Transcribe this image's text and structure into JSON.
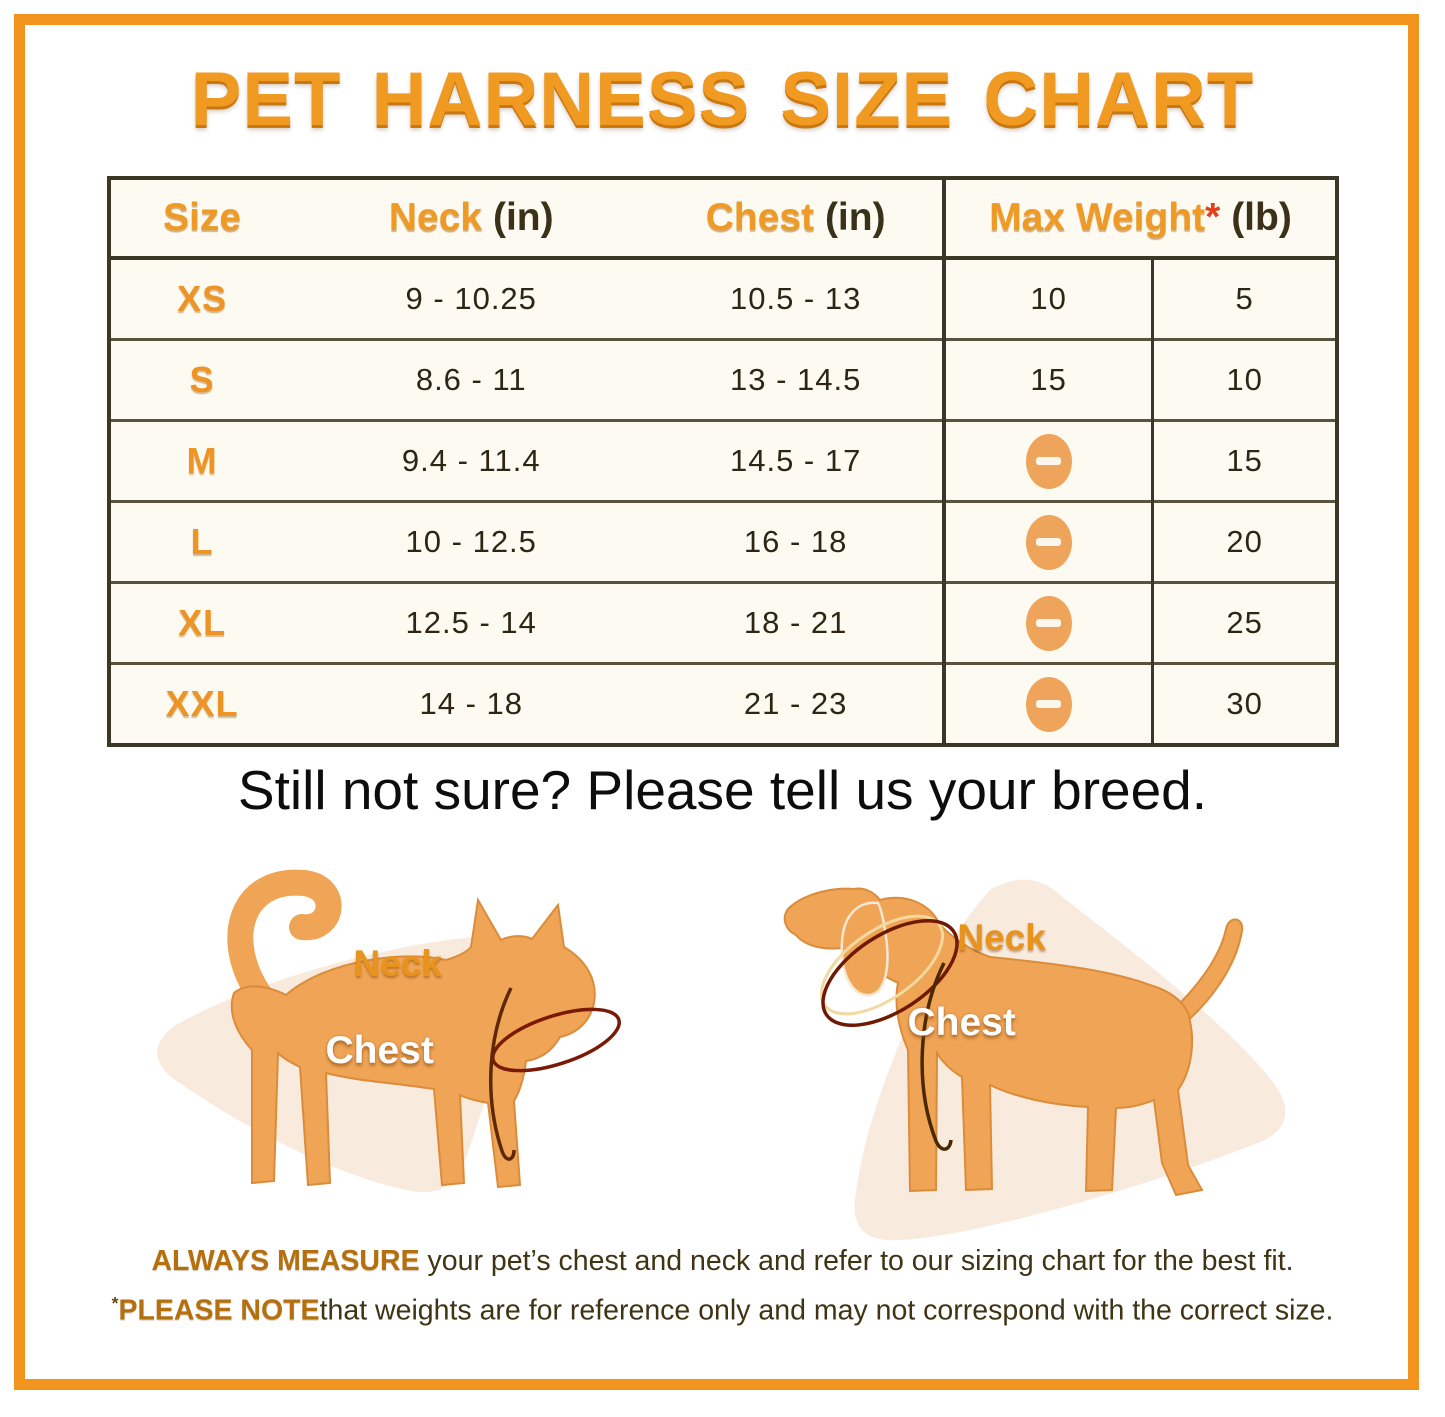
{
  "title": "PET HARNESS SIZE CHART",
  "colors": {
    "frame_orange": "#F2941E",
    "heading_orange": "#F09A22",
    "table_border": "#3C3827",
    "cell_background": "#FDFBF1",
    "dark_text": "#2E2614",
    "minus_icon_fill": "#EFA45C",
    "animal_fill": "#F0A455",
    "blob_fill": "#F8EADD",
    "measure_line": "#7A1A05"
  },
  "table": {
    "headers": {
      "size": "Size",
      "neck": "Neck",
      "neck_unit": "(in)",
      "chest": "Chest",
      "chest_unit": "(in)",
      "max_weight": "Max Weight",
      "footnote_marker": "*",
      "max_weight_unit": "(lb)"
    },
    "not_applicable_icon": "minus-icon",
    "rows": [
      {
        "size": "XS",
        "neck": "9 - 10.25",
        "chest": "10.5 - 13",
        "weight_a": "10",
        "weight_b": "5"
      },
      {
        "size": "S",
        "neck": "8.6 - 11",
        "chest": "13 - 14.5",
        "weight_a": "15",
        "weight_b": "10"
      },
      {
        "size": "M",
        "neck": "9.4 - 11.4",
        "chest": "14.5 - 17",
        "weight_a": null,
        "weight_b": "15"
      },
      {
        "size": "L",
        "neck": "10 - 12.5",
        "chest": "16 - 18",
        "weight_a": null,
        "weight_b": "20"
      },
      {
        "size": "XL",
        "neck": "12.5 - 14",
        "chest": "18 - 21",
        "weight_a": null,
        "weight_b": "25"
      },
      {
        "size": "XXL",
        "neck": "14 - 18",
        "chest": "21 - 23",
        "weight_a": null,
        "weight_b": "30"
      }
    ]
  },
  "subtitle": "Still not sure? Please tell us your breed.",
  "diagrams": {
    "cat": {
      "neck_label": "Neck",
      "chest_label": "Chest"
    },
    "dog": {
      "neck_label": "Neck",
      "chest_label": "Chest"
    }
  },
  "footer": {
    "note1_bold": "ALWAYS MEASURE",
    "note1_rest": " your pet’s chest and neck and refer to our sizing chart for the best fit.",
    "note2_marker": "*",
    "note2_bold": "PLEASE NOTE",
    "note2_rest": "that weights are for reference only and may not correspond with the correct size."
  },
  "chart_data": {
    "type": "table",
    "title": "PET HARNESS SIZE CHART",
    "columns": [
      "Size",
      "Neck (in)",
      "Chest (in)",
      "Max Weight* (lb) col 1",
      "Max Weight* (lb) col 2"
    ],
    "rows": [
      [
        "XS",
        "9 - 10.25",
        "10.5 - 13",
        "10",
        "5"
      ],
      [
        "S",
        "8.6 - 11",
        "13 - 14.5",
        "15",
        "10"
      ],
      [
        "M",
        "9.4 - 11.4",
        "14.5 - 17",
        "—",
        "15"
      ],
      [
        "L",
        "10 - 12.5",
        "16 - 18",
        "—",
        "20"
      ],
      [
        "XL",
        "12.5 - 14",
        "18 - 21",
        "—",
        "25"
      ],
      [
        "XXL",
        "14 - 18",
        "21 - 23",
        "—",
        "30"
      ]
    ],
    "notes": [
      "ALWAYS MEASURE your pet’s chest and neck and refer to our sizing chart for the best fit.",
      "*PLEASE NOTE that weights are for reference only and may not correspond with the correct size."
    ]
  }
}
